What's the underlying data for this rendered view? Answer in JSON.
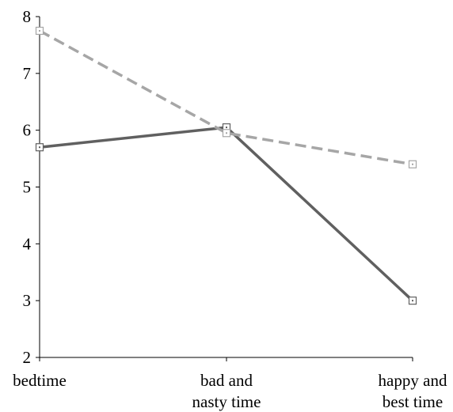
{
  "chart_data": {
    "type": "line",
    "categories": [
      [
        "bedtime"
      ],
      [
        "bad and",
        "nasty time"
      ],
      [
        "happy and",
        "best time"
      ]
    ],
    "series": [
      {
        "values": [
          5.7,
          6.05,
          3.0
        ],
        "color": "#606060",
        "style": "solid",
        "marker": "open-square"
      },
      {
        "values": [
          7.75,
          5.95,
          5.4
        ],
        "color": "#a6a6a6",
        "style": "dashed",
        "marker": "open-square"
      }
    ],
    "ylim": [
      2,
      8
    ],
    "yticks": [
      2,
      3,
      4,
      5,
      6,
      7,
      8
    ],
    "grid": false,
    "legend": "none"
  }
}
